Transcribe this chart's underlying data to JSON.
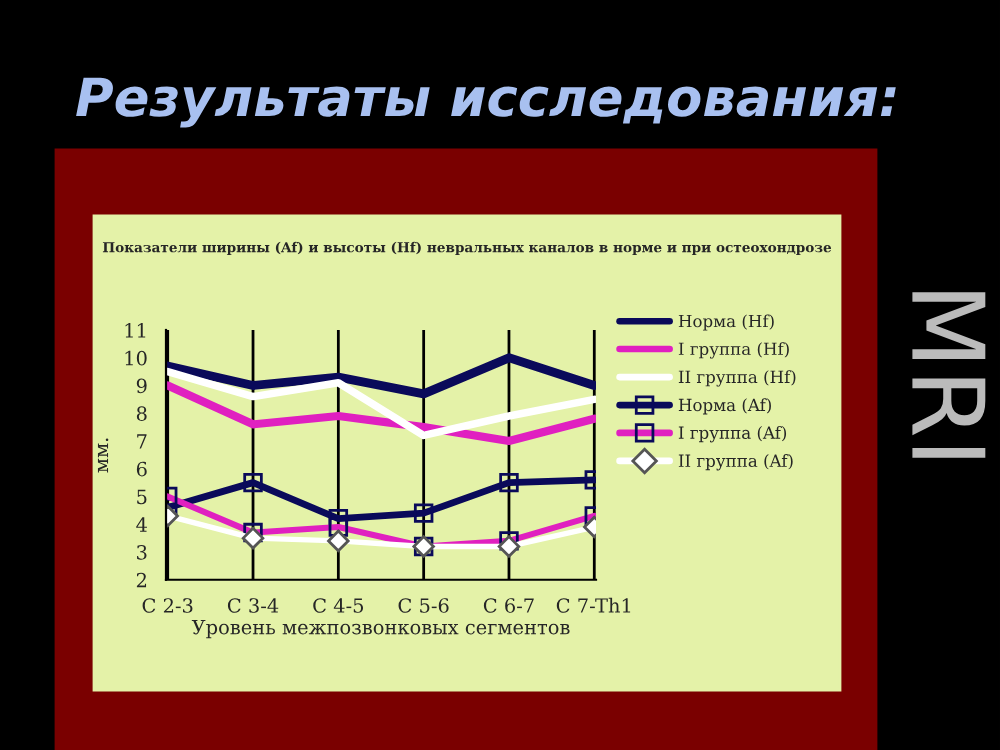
{
  "chart_data": {
    "type": "line",
    "title": "Показатели ширины (Af) и высоты (Hf) невральных каналов в норме и при остеохондрозе",
    "xlabel": "Уровень межпозвонковых сегментов",
    "ylabel": "мм.",
    "annotations": [
      "Результаты исследования:",
      "MRI"
    ],
    "categories": [
      "C 2-3",
      "C 3-4",
      "C 4-5",
      "C 5-6",
      "C 6-7",
      "C 7-Th1"
    ],
    "ylim": [
      2,
      11
    ],
    "yticks": [
      2,
      3,
      4,
      5,
      6,
      7,
      8,
      9,
      10,
      11
    ],
    "grid": "x",
    "legend": "right",
    "series": [
      {
        "name": "Норма (Hf)",
        "color": "#0a0a5a",
        "marker": "none",
        "values": [
          9.7,
          9.0,
          9.3,
          8.7,
          10.0,
          9.0
        ]
      },
      {
        "name": "I группа (Hf)",
        "color": "#e020c0",
        "marker": "none",
        "values": [
          9.0,
          7.6,
          7.9,
          7.5,
          7.0,
          7.8
        ]
      },
      {
        "name": "II группа (Hf)",
        "color": "#ffffff",
        "marker": "none",
        "values": [
          9.5,
          8.6,
          9.1,
          7.2,
          7.9,
          8.5
        ]
      },
      {
        "name": "Норма (Af)",
        "color": "#0a0a5a",
        "marker": "square",
        "values": [
          4.6,
          5.5,
          4.2,
          4.4,
          5.5,
          5.6
        ]
      },
      {
        "name": "I группа (Af)",
        "color": "#e020c0",
        "marker": "square",
        "values": [
          5.0,
          3.7,
          3.9,
          3.2,
          3.4,
          4.3
        ]
      },
      {
        "name": "II группа (Af)",
        "color": "#ffffff",
        "marker": "diamond",
        "values": [
          4.3,
          3.5,
          3.4,
          3.2,
          3.2,
          3.9
        ]
      }
    ]
  }
}
